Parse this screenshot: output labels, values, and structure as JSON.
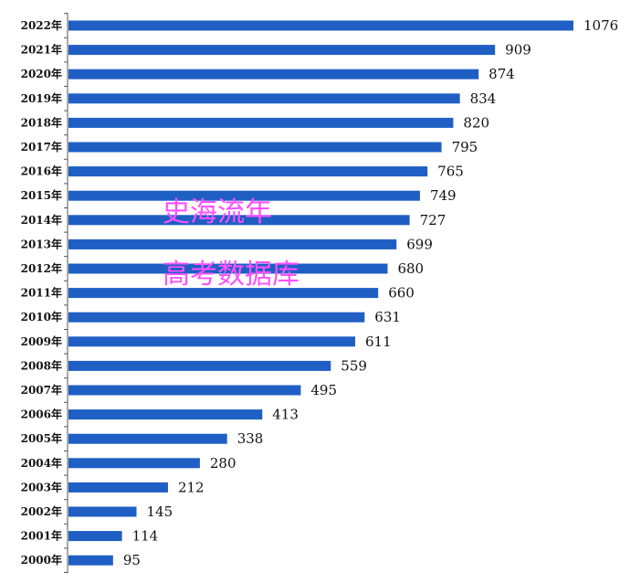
{
  "chart_data": {
    "type": "bar",
    "orientation": "horizontal",
    "categories": [
      "2022年",
      "2021年",
      "2020年",
      "2019年",
      "2018年",
      "2017年",
      "2016年",
      "2015年",
      "2014年",
      "2013年",
      "2012年",
      "2011年",
      "2010年",
      "2009年",
      "2008年",
      "2007年",
      "2006年",
      "2005年",
      "2004年",
      "2003年",
      "2002年",
      "2001年",
      "2000年"
    ],
    "values": [
      1076,
      909,
      874,
      834,
      820,
      795,
      765,
      749,
      727,
      699,
      680,
      660,
      631,
      611,
      559,
      495,
      413,
      338,
      280,
      212,
      145,
      114,
      95
    ],
    "xlim": [
      0,
      1076
    ],
    "bar_color": "#1f5fc4",
    "grid": false,
    "legend": "none"
  },
  "watermark": {
    "line1": "史海流年",
    "line2": "高考数据库",
    "color": "#ff4fff"
  }
}
